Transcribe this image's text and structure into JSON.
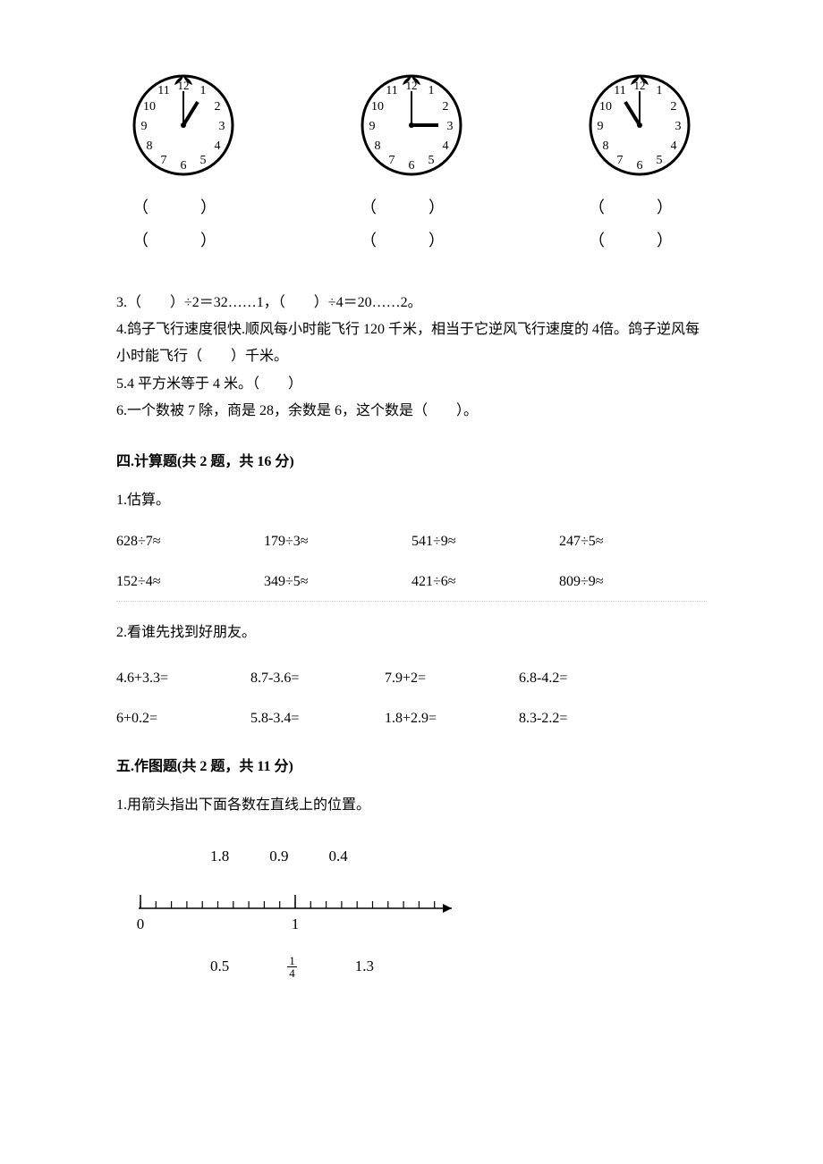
{
  "clocks": {
    "paren_text": "（　）",
    "clock_numbers": [
      "12",
      "1",
      "2",
      "3",
      "4",
      "5",
      "6",
      "7",
      "8",
      "9",
      "10",
      "11"
    ],
    "hands": [
      {
        "hour_angle": 30,
        "minute_angle": 0
      },
      {
        "hour_angle": 90,
        "minute_angle": 0
      },
      {
        "hour_angle": 300,
        "minute_angle": 0
      }
    ],
    "stroke_color": "#000000",
    "face_fill": "#ffffff"
  },
  "fill_questions": {
    "q3": "3.（　　）÷2＝32……1，（　　）÷4＝20……2。",
    "q4": "4.鸽子飞行速度很快.顺风每小时能飞行 120 千米，相当于它逆风飞行速度的 4倍。鸽子逆风每小时能飞行（　　）千米。",
    "q5": "5.4 平方米等于 4 米。（　　）",
    "q6": "6.一个数被 7 除，商是 28，余数是 6，这个数是（　　）。"
  },
  "section4": {
    "title": "四.计算题(共 2 题，共 16 分)",
    "q1_label": "1.估算。",
    "row1": [
      "628÷7≈",
      "179÷3≈",
      "541÷9≈",
      "247÷5≈"
    ],
    "row2": [
      "152÷4≈",
      "349÷5≈",
      "421÷6≈",
      "809÷9≈"
    ],
    "q2_label": "2.看谁先找到好朋友。",
    "row3": [
      "4.6+3.3=",
      "8.7-3.6=",
      "7.9+2=",
      "6.8-4.2="
    ],
    "row4": [
      "6+0.2=",
      "5.8-3.4=",
      "1.8+2.9=",
      "8.3-2.2="
    ]
  },
  "section5": {
    "title": "五.作图题(共 2 题，共 11 分)",
    "q1_label": "1.用箭头指出下面各数在直线上的位置。",
    "top_numbers": [
      "1.8",
      "0.9",
      "0.4"
    ],
    "axis": {
      "start_label": "0",
      "mid_label": "1",
      "tick_count": 20,
      "stroke": "#000000"
    },
    "bottom_numbers": {
      "n1": "0.5",
      "frac_num": "1",
      "frac_den": "4",
      "n3": "1.3"
    }
  }
}
